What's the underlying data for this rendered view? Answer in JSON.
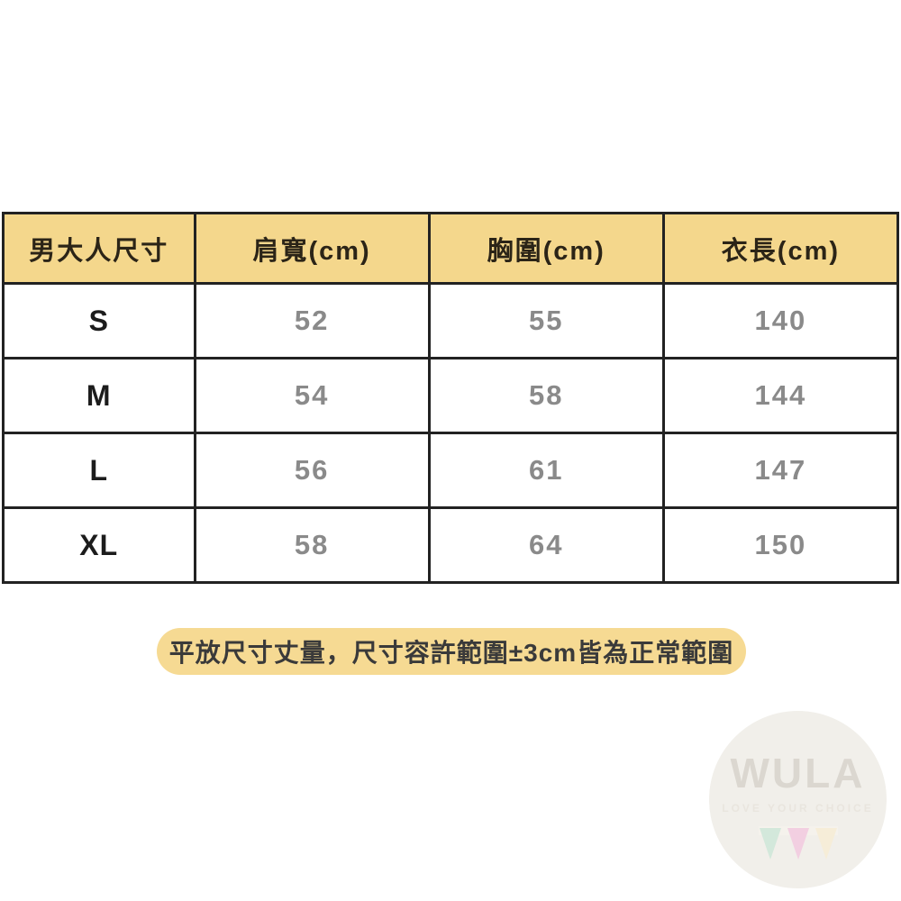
{
  "table": {
    "headers": [
      "男大人尺寸",
      "肩寬(cm)",
      "胸圍(cm)",
      "衣長(cm)"
    ],
    "rows": [
      [
        "S",
        "52",
        "55",
        "140"
      ],
      [
        "M",
        "54",
        "58",
        "144"
      ],
      [
        "L",
        "56",
        "61",
        "147"
      ],
      [
        "XL",
        "58",
        "64",
        "150"
      ]
    ]
  },
  "note": "平放尺寸丈量，尺寸容許範圍±3cm皆為正常範圍",
  "watermark": {
    "brand": "WULA",
    "tagline": "LOVE YOUR CHOICE"
  },
  "colors": {
    "header_yellow": "#F4D78C",
    "note_yellow": "#F6DA93",
    "table_border": "#222222",
    "value_gray": "#8A8A8A",
    "watermark_circle": "#F1EFEA",
    "triangle_green": "#D3E8DB",
    "triangle_pink": "#F2CFE1",
    "triangle_cream": "#F6EDD8"
  }
}
